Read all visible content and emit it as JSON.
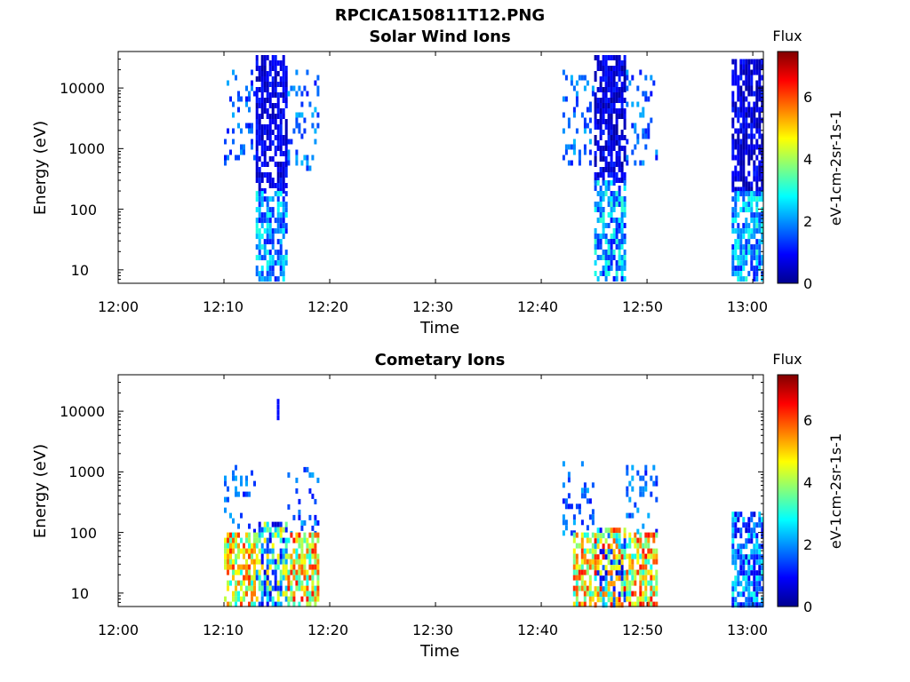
{
  "figure": {
    "title": "RPCICA150811T12.PNG"
  },
  "chart_data": [
    {
      "type": "heatmap",
      "title": "Solar Wind Ions",
      "xlabel": "Time",
      "ylabel": "Energy (eV)",
      "x_ticks": [
        "12:00",
        "12:10",
        "12:20",
        "12:30",
        "12:40",
        "12:50",
        "13:00"
      ],
      "xlim": [
        "12:00",
        "13:01"
      ],
      "y_scale": "log",
      "y_ticks": [
        "10",
        "100",
        "1000",
        "10000"
      ],
      "ylim": [
        6,
        40000
      ],
      "colorbar": {
        "title": "Flux",
        "label": "eV-1cm-2sr-1s-1",
        "ticks": [
          "0",
          "2",
          "4",
          "6"
        ],
        "range": [
          0,
          7.4
        ],
        "colormap": "jet"
      },
      "bursts": [
        {
          "start": "12:10",
          "end": "12:13",
          "density": "sparse",
          "energy_eV": [
            600,
            20000
          ],
          "flux_range": [
            1.0,
            2.2
          ]
        },
        {
          "start": "12:13",
          "end": "12:16",
          "density": "dense",
          "energy_eV": [
            200,
            35000
          ],
          "flux_range": [
            0.2,
            1.2
          ]
        },
        {
          "start": "12:13",
          "end": "12:16",
          "density": "dense",
          "energy_eV": [
            7,
            200
          ],
          "flux_range": [
            1.0,
            3.0
          ]
        },
        {
          "start": "12:16",
          "end": "12:19",
          "density": "sparse",
          "energy_eV": [
            500,
            20000
          ],
          "flux_range": [
            1.0,
            2.3
          ]
        },
        {
          "start": "12:42",
          "end": "12:45",
          "density": "sparse",
          "energy_eV": [
            600,
            20000
          ],
          "flux_range": [
            1.0,
            2.3
          ]
        },
        {
          "start": "12:45",
          "end": "12:48",
          "density": "dense",
          "energy_eV": [
            300,
            35000
          ],
          "flux_range": [
            0.1,
            1.2
          ]
        },
        {
          "start": "12:45",
          "end": "12:48",
          "density": "dense",
          "energy_eV": [
            7,
            300
          ],
          "flux_range": [
            1.0,
            3.2
          ]
        },
        {
          "start": "12:48",
          "end": "12:51",
          "density": "sparse",
          "energy_eV": [
            600,
            20000
          ],
          "flux_range": [
            1.0,
            2.2
          ]
        },
        {
          "start": "12:58",
          "end": "13:01",
          "density": "dense",
          "energy_eV": [
            200,
            30000
          ],
          "flux_range": [
            0.1,
            1.2
          ]
        },
        {
          "start": "12:58",
          "end": "13:01",
          "density": "dense",
          "energy_eV": [
            7,
            200
          ],
          "flux_range": [
            1.0,
            3.2
          ]
        }
      ]
    },
    {
      "type": "heatmap",
      "title": "Cometary Ions",
      "xlabel": "Time",
      "ylabel": "Energy (eV)",
      "x_ticks": [
        "12:00",
        "12:10",
        "12:20",
        "12:30",
        "12:40",
        "12:50",
        "13:00"
      ],
      "xlim": [
        "12:00",
        "13:01"
      ],
      "y_scale": "log",
      "y_ticks": [
        "10",
        "100",
        "1000",
        "10000"
      ],
      "ylim": [
        6,
        40000
      ],
      "colorbar": {
        "title": "Flux",
        "label": "eV-1cm-2sr-1s-1",
        "ticks": [
          "0",
          "2",
          "4",
          "6"
        ],
        "range": [
          0,
          7.4
        ],
        "colormap": "jet"
      },
      "bursts": [
        {
          "start": "12:10",
          "end": "12:13",
          "density": "sparse",
          "energy_eV": [
            100,
            1300
          ],
          "flux_range": [
            1.0,
            2.3
          ]
        },
        {
          "start": "12:10",
          "end": "12:13",
          "density": "dense",
          "energy_eV": [
            7,
            100
          ],
          "flux_range": [
            2.8,
            6.2
          ]
        },
        {
          "start": "12:13",
          "end": "12:16",
          "density": "dense",
          "energy_eV": [
            7,
            150
          ],
          "flux_range": [
            0.5,
            5.0
          ]
        },
        {
          "start": "12:15",
          "end": "12:15",
          "density": "sparse",
          "energy_eV": [
            8000,
            16000
          ],
          "flux_range": [
            1.0,
            1.0
          ]
        },
        {
          "start": "12:16",
          "end": "12:19",
          "density": "sparse",
          "energy_eV": [
            100,
            1200
          ],
          "flux_range": [
            1.0,
            2.3
          ]
        },
        {
          "start": "12:16",
          "end": "12:19",
          "density": "dense",
          "energy_eV": [
            7,
            100
          ],
          "flux_range": [
            2.8,
            6.4
          ]
        },
        {
          "start": "12:42",
          "end": "12:45",
          "density": "sparse",
          "energy_eV": [
            100,
            1500
          ],
          "flux_range": [
            1.0,
            2.3
          ]
        },
        {
          "start": "12:43",
          "end": "12:45",
          "density": "dense",
          "energy_eV": [
            7,
            100
          ],
          "flux_range": [
            2.8,
            6.4
          ]
        },
        {
          "start": "12:45",
          "end": "12:48",
          "density": "dense",
          "energy_eV": [
            7,
            120
          ],
          "flux_range": [
            0.5,
            6.6
          ]
        },
        {
          "start": "12:48",
          "end": "12:51",
          "density": "sparse",
          "energy_eV": [
            100,
            1300
          ],
          "flux_range": [
            1.0,
            2.3
          ]
        },
        {
          "start": "12:48",
          "end": "12:51",
          "density": "dense",
          "energy_eV": [
            7,
            100
          ],
          "flux_range": [
            2.8,
            6.6
          ]
        },
        {
          "start": "12:58",
          "end": "13:01",
          "density": "dense",
          "energy_eV": [
            7,
            220
          ],
          "flux_range": [
            0.5,
            3.0
          ]
        }
      ]
    }
  ]
}
